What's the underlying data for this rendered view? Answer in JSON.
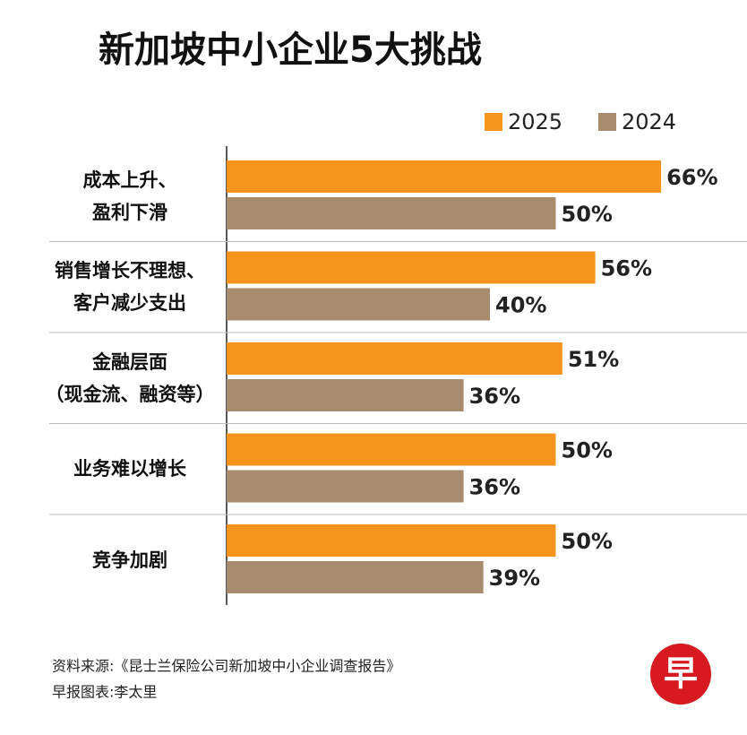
{
  "chart_data": {
    "type": "hbar",
    "title": "新加坡中小企业5大挑战",
    "categories": [
      "成本上升、\n盈利下滑",
      "销售增长不理想、\n客户减少支出",
      "金融层面\n（现金流、融资等）",
      "业务难以增长",
      "竞争加剧"
    ],
    "series": [
      {
        "name": "2025",
        "color": "#f7941d",
        "values": [
          66,
          56,
          51,
          50,
          50
        ],
        "value_labels": [
          "66%",
          "56%",
          "51%",
          "50%",
          "50%"
        ]
      },
      {
        "name": "2024",
        "color": "#a68b6d",
        "values": [
          50,
          40,
          36,
          36,
          39
        ],
        "value_labels": [
          "50%",
          "40%",
          "36%",
          "36%",
          "39%"
        ]
      }
    ],
    "source": "资料来源:《昆士兰保险公司新加坡中小企业调查报告》",
    "credit": "早报图表:李太里",
    "logo": "早"
  }
}
